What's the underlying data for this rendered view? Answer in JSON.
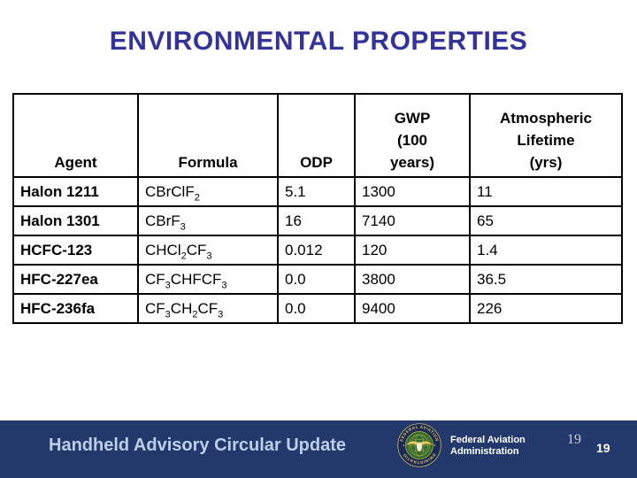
{
  "slide": {
    "title": "ENVIRONMENTAL PROPERTIES"
  },
  "table": {
    "headers": [
      "Agent",
      "Formula",
      "ODP",
      "GWP\n(100\nyears)",
      "Atmospheric\nLifetime\n(yrs)"
    ],
    "rows": [
      {
        "agent": "Halon 1211",
        "formula": "CBrClF_2",
        "odp": "5.1",
        "gwp": "1300",
        "lifetime": "11"
      },
      {
        "agent": "Halon 1301",
        "formula": "CBrF_3",
        "odp": "16",
        "gwp": "7140",
        "lifetime": "65"
      },
      {
        "agent": "HCFC-123",
        "formula": "CHCl_2CF_3",
        "odp": "0.012",
        "gwp": "120",
        "lifetime": "1.4"
      },
      {
        "agent": "HFC-227ea",
        "formula": "CF_3CHFCF_3",
        "odp": "0.0",
        "gwp": "3800",
        "lifetime": "36.5"
      },
      {
        "agent": "HFC-236fa",
        "formula": "CF_3CH_2CF_3",
        "odp": "0.0",
        "gwp": "9400",
        "lifetime": "226"
      }
    ]
  },
  "footer": {
    "presentation_title": "Handheld Advisory Circular Update",
    "org_name": "Federal Aviation\nAdministration",
    "seal_text_top": "FEDERAL AVIATION",
    "seal_text_bottom": "ADMINISTRATION",
    "page_number_light": "19",
    "page_number_bold": "19"
  },
  "colors": {
    "title_text": "#333399",
    "footer_bar": "#24396B",
    "footer_title_text": "#BCCEE8",
    "table_border": "#000000",
    "seal_navy": "#1B2B56",
    "seal_green": "#2F6E33",
    "seal_gold": "#E8C65A"
  }
}
